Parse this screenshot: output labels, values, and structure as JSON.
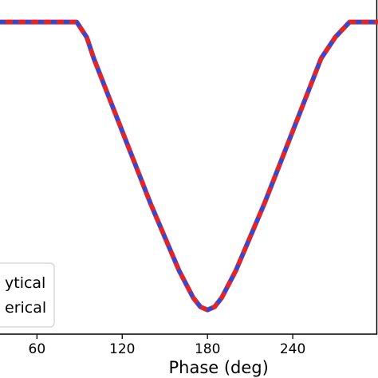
{
  "chart_data": {
    "type": "line",
    "xlabel": "Phase (deg)",
    "xticks": [
      60,
      120,
      180,
      240
    ],
    "xlim": [
      34,
      300
    ],
    "ylim": [
      0,
      1
    ],
    "grid": false,
    "legend": {
      "placement": "lower-left",
      "entries": [
        "ytical",
        "erical"
      ]
    },
    "series": [
      {
        "name": "ytical",
        "color": "#e0262b",
        "style": "solid",
        "x": [
          34,
          88,
          95,
          100,
          110,
          120,
          130,
          140,
          150,
          160,
          170,
          175,
          180,
          185,
          190,
          200,
          210,
          220,
          230,
          240,
          250,
          260,
          270,
          280,
          285,
          290,
          300
        ],
        "y": [
          0.98,
          0.98,
          0.93,
          0.86,
          0.74,
          0.62,
          0.5,
          0.38,
          0.27,
          0.16,
          0.07,
          0.04,
          0.03,
          0.04,
          0.07,
          0.16,
          0.27,
          0.38,
          0.5,
          0.62,
          0.74,
          0.86,
          0.93,
          0.98,
          0.98,
          0.98,
          0.98
        ]
      },
      {
        "name": "erical",
        "color": "#2b4bd8",
        "style": "dashed",
        "x": [
          34,
          88,
          95,
          100,
          110,
          120,
          130,
          140,
          150,
          160,
          170,
          175,
          180,
          185,
          190,
          200,
          210,
          220,
          230,
          240,
          250,
          260,
          270,
          280,
          285,
          290,
          300
        ],
        "y": [
          0.98,
          0.98,
          0.93,
          0.86,
          0.74,
          0.62,
          0.5,
          0.38,
          0.27,
          0.16,
          0.07,
          0.04,
          0.03,
          0.04,
          0.07,
          0.16,
          0.27,
          0.38,
          0.5,
          0.62,
          0.74,
          0.86,
          0.93,
          0.98,
          0.98,
          0.98,
          0.98
        ]
      }
    ]
  }
}
